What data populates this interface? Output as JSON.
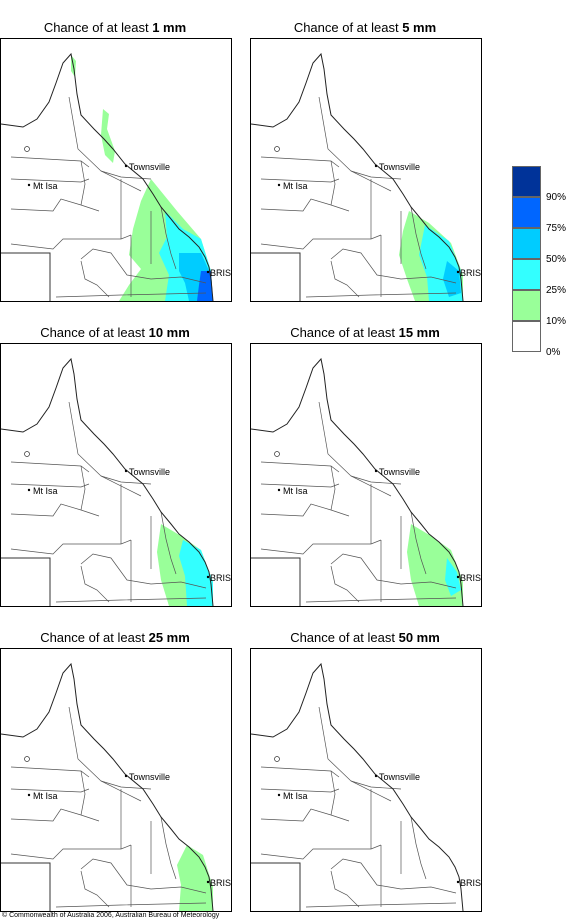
{
  "panels": [
    {
      "title_prefix": "Chance of at least ",
      "threshold": "1 mm",
      "rain": [
        {
          "zone": "north-coast-strip",
          "category": "10-25%"
        },
        {
          "zone": "coast-band-wide",
          "category": "10-25%"
        },
        {
          "zone": "southeast-core-wide",
          "category": "25-50%"
        },
        {
          "zone": "southeast-inner",
          "category": "50-75%"
        },
        {
          "zone": "coast-spot",
          "category": "75-90%"
        }
      ]
    },
    {
      "title_prefix": "Chance of at least ",
      "threshold": "5 mm",
      "rain": [
        {
          "zone": "coast-band-mid",
          "category": "10-25%"
        },
        {
          "zone": "southeast-core-mid",
          "category": "25-50%"
        },
        {
          "zone": "southeast-inner-small",
          "category": "50-75%"
        }
      ]
    },
    {
      "title_prefix": "Chance of at least ",
      "threshold": "10 mm",
      "rain": [
        {
          "zone": "coast-band-narrow",
          "category": "10-25%"
        },
        {
          "zone": "southeast-core-narrow",
          "category": "25-50%"
        }
      ]
    },
    {
      "title_prefix": "Chance of at least ",
      "threshold": "15 mm",
      "rain": [
        {
          "zone": "coast-band-narrow",
          "category": "10-25%"
        },
        {
          "zone": "southeast-core-small",
          "category": "25-50%"
        }
      ]
    },
    {
      "title_prefix": "Chance of at least ",
      "threshold": "25 mm",
      "rain": [
        {
          "zone": "coast-band-thin",
          "category": "10-25%"
        }
      ]
    },
    {
      "title_prefix": "Chance of at least ",
      "threshold": "50 mm",
      "rain": []
    }
  ],
  "places": {
    "townsville": "Townsville",
    "mt_isa": "Mt Isa",
    "bris": "BRIS"
  },
  "legend": {
    "labels": [
      "90%",
      "75%",
      "50%",
      "25%",
      "10%",
      "0%"
    ],
    "swatches": [
      {
        "category": "90-100%",
        "color": "#003399"
      },
      {
        "category": "75-90%",
        "color": "#0066ff"
      },
      {
        "category": "50-75%",
        "color": "#00ccff"
      },
      {
        "category": "25-50%",
        "color": "#33ffff"
      },
      {
        "category": "10-25%",
        "color": "#99ff99"
      },
      {
        "category": "0-10%",
        "color": "#ffffff"
      }
    ]
  },
  "colors": {
    "10-25%": "#99ff99",
    "25-50%": "#33ffff",
    "50-75%": "#00ccff",
    "75-90%": "#0066ff",
    "90-100%": "#003399"
  },
  "copyright": "© Commonwealth of Australia 2006, Australian Bureau of Meteorology"
}
